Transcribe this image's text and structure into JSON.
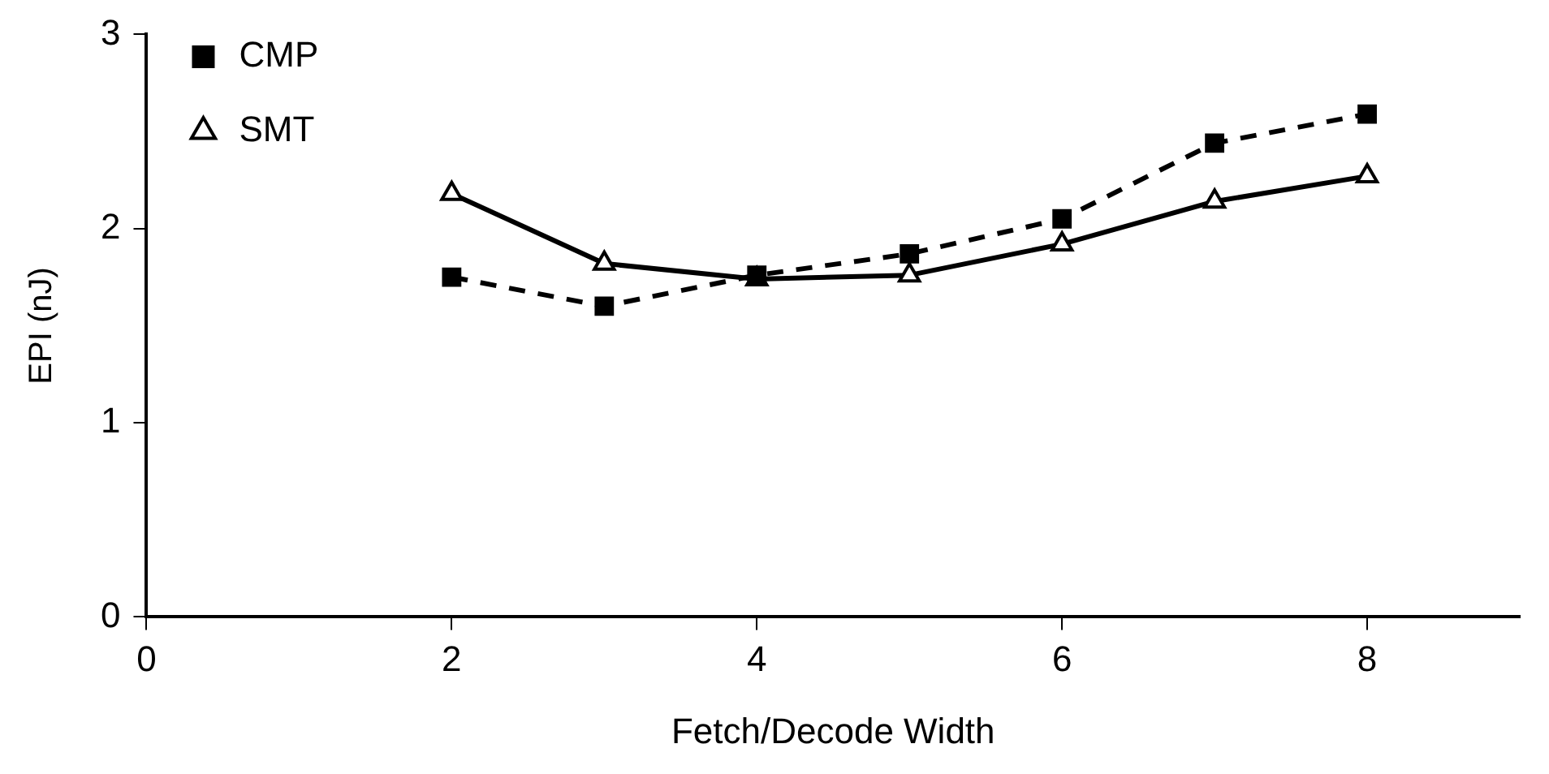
{
  "chart_data": {
    "type": "line",
    "xlabel": "Fetch/Decode Width",
    "ylabel": "EPI (nJ)",
    "xlim": [
      0,
      9
    ],
    "xticks": [
      0,
      2,
      4,
      6,
      8
    ],
    "ylim": [
      0,
      3
    ],
    "yticks": [
      0,
      1,
      2,
      3
    ],
    "grid": false,
    "legend": "top left",
    "series": [
      {
        "name": "SMT",
        "color": "#000000",
        "marker": "triangle",
        "line_style": "solid",
        "x": [
          2,
          3,
          4,
          5,
          6,
          7,
          8
        ],
        "values": [
          2.18,
          1.82,
          1.74,
          1.76,
          1.92,
          2.14,
          2.27
        ]
      },
      {
        "name": "CMP",
        "color": "#000000",
        "marker": "square",
        "line_style": "dashed",
        "x": [
          2,
          3,
          4,
          5,
          6,
          7,
          8
        ],
        "values": [
          1.75,
          1.6,
          1.76,
          1.87,
          2.05,
          2.44,
          2.59
        ]
      }
    ]
  }
}
